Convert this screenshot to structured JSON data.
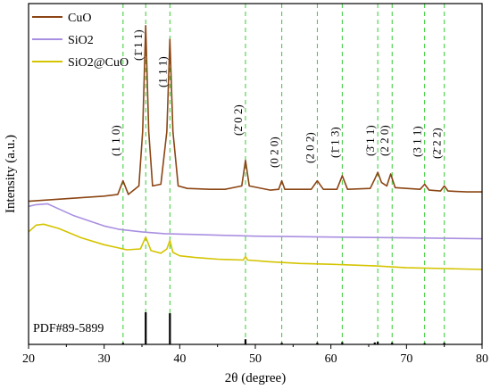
{
  "chart_data": {
    "type": "line",
    "xlabel": "2θ (degree)",
    "ylabel": "Intensity (a.u.)",
    "xlim": [
      20,
      80
    ],
    "x_ticks": [
      "20",
      "30",
      "40",
      "50",
      "60",
      "70",
      "80"
    ],
    "grid": false,
    "legend_position": "top-left",
    "reference_label": "PDF#89-5899",
    "series": [
      {
        "name": "CuO",
        "color": "#8B4513",
        "x": [
          20,
          25,
          30,
          31.8,
          32.5,
          33.2,
          34.6,
          35.1,
          35.5,
          35.9,
          36.4,
          37.5,
          38.3,
          38.7,
          39.1,
          39.8,
          41,
          44,
          46,
          48.2,
          48.7,
          49.2,
          52,
          53.1,
          53.5,
          53.9,
          57.4,
          58.2,
          59,
          60.8,
          61.5,
          62.2,
          65.2,
          65.8,
          66.2,
          66.7,
          67.4,
          67.9,
          68.5,
          71.8,
          72.4,
          73,
          74.5,
          75,
          75.5,
          78,
          80
        ],
        "y": [
          8.4,
          8.55,
          8.7,
          8.8,
          9.6,
          8.8,
          9.3,
          12.5,
          18.7,
          12.5,
          9.3,
          9.4,
          12.5,
          17.9,
          12.5,
          9.3,
          9.15,
          9.1,
          9.1,
          9.3,
          10.8,
          9.3,
          9.05,
          9.1,
          9.6,
          9.1,
          9.1,
          9.6,
          9.1,
          9.1,
          9.9,
          9.1,
          9.15,
          9.7,
          10.1,
          9.5,
          9.3,
          10.0,
          9.2,
          9.1,
          9.4,
          9.05,
          9.0,
          9.3,
          9.0,
          8.95,
          8.95
        ]
      },
      {
        "name": "SiO2",
        "color": "#A98FE0",
        "x": [
          20,
          21,
          22.5,
          24,
          26,
          28,
          30,
          32,
          35,
          38,
          42,
          46,
          50,
          60,
          70,
          80
        ],
        "y": [
          8.1,
          8.2,
          8.25,
          7.95,
          7.55,
          7.25,
          6.95,
          6.75,
          6.6,
          6.5,
          6.45,
          6.4,
          6.35,
          6.3,
          6.25,
          6.2
        ]
      },
      {
        "name": "SiO2@CuO",
        "color": "#D4C400",
        "x": [
          20,
          21,
          22,
          24,
          27,
          30,
          33,
          34.8,
          35.5,
          36.2,
          37.5,
          38.3,
          38.7,
          39.1,
          40,
          42,
          45,
          48.4,
          48.7,
          49,
          52,
          56,
          60,
          66,
          70,
          75,
          80
        ],
        "y": [
          6.6,
          7.0,
          7.05,
          6.8,
          6.25,
          5.85,
          5.55,
          5.6,
          6.3,
          5.5,
          5.35,
          5.6,
          6.1,
          5.4,
          5.2,
          5.1,
          5.0,
          4.95,
          5.15,
          4.95,
          4.85,
          4.75,
          4.7,
          4.6,
          4.5,
          4.45,
          4.4
        ]
      }
    ],
    "reference_peaks": {
      "color": "#000000",
      "x": [
        32.5,
        35.5,
        38.7,
        48.7,
        53.5,
        58.2,
        61.5,
        65.8,
        66.2,
        68.1,
        72.4,
        75.0
      ],
      "intensity": [
        0.05,
        1.0,
        0.97,
        0.16,
        0.05,
        0.06,
        0.07,
        0.06,
        0.08,
        0.06,
        0.04,
        0.05
      ]
    },
    "reflections": {
      "color": "#33CC33",
      "x": [
        32.5,
        35.5,
        38.7,
        48.7,
        53.5,
        58.2,
        61.5,
        66.2,
        68.1,
        72.4,
        75.0
      ],
      "labels": [
        "(1 1 0)",
        "(1̄ 1 1)",
        "(1 1 1)",
        "(2̄ 0 2)",
        "(0 2 0)",
        "(2 0 2)",
        "(1̄ 1 3)",
        "(3̄ 1 1)",
        "(2 2 0)",
        "(3 1 1)",
        "(2̄ 2 2)"
      ]
    }
  }
}
